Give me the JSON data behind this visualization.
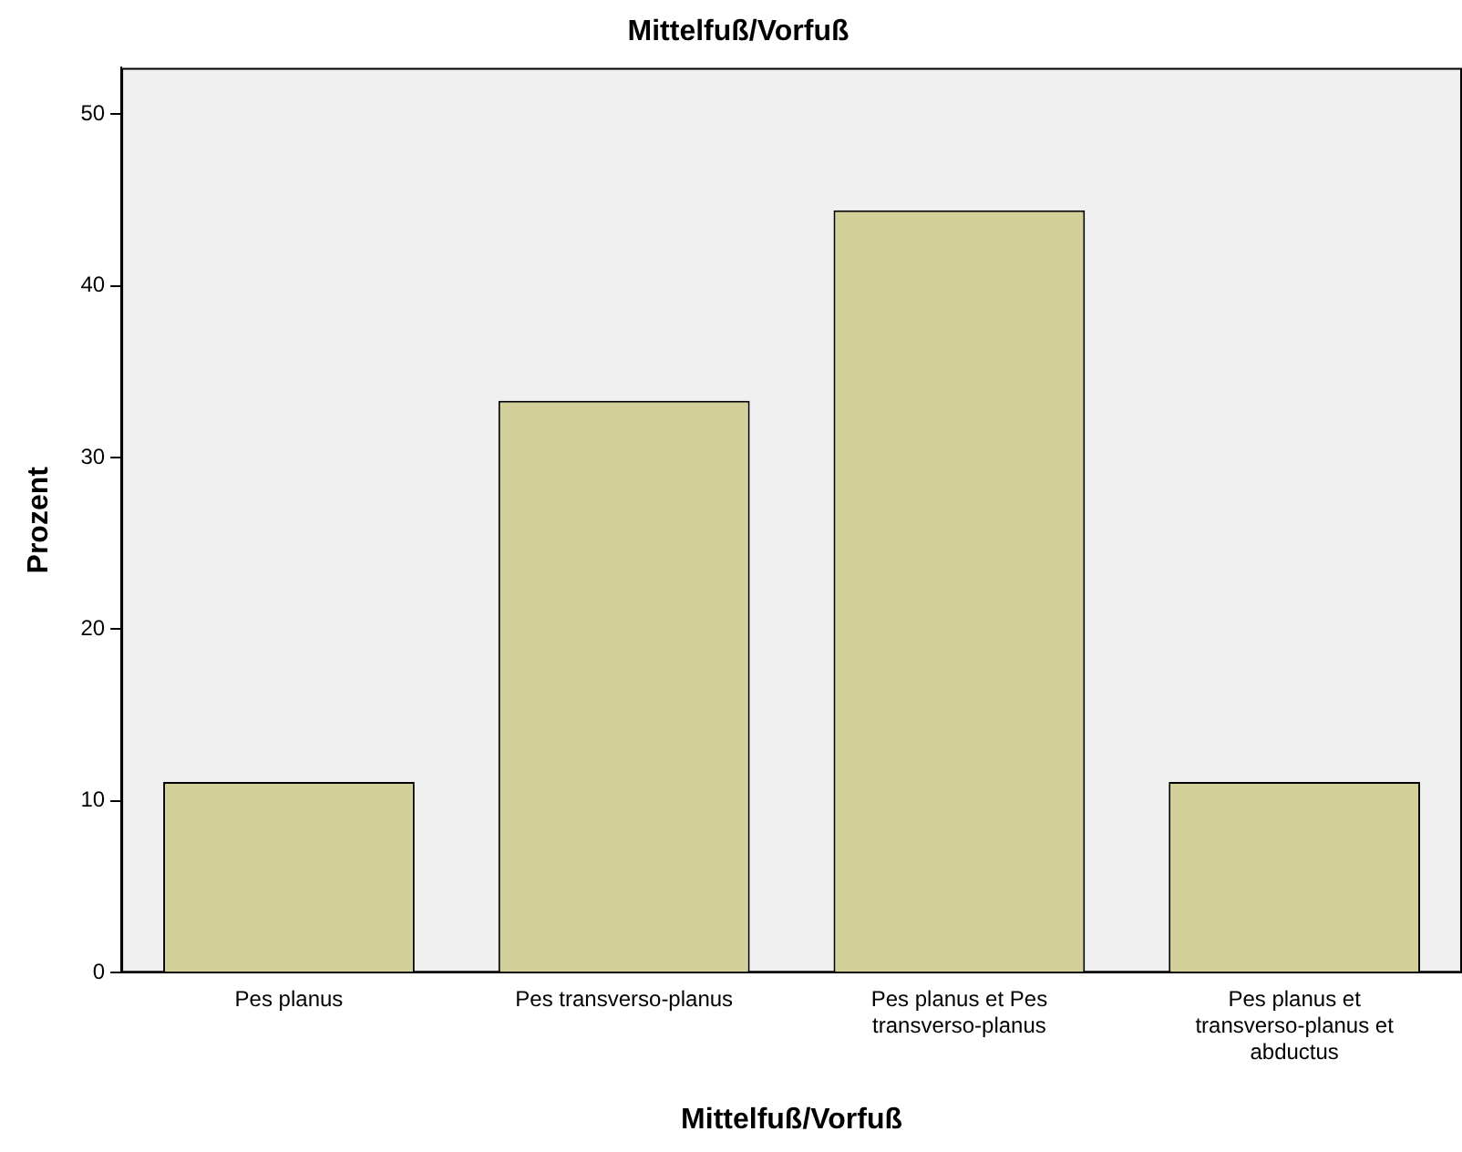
{
  "chart_data": {
    "type": "bar",
    "title": "Mittelfuß/Vorfuß",
    "xlabel": "Mittelfuß/Vorfuß",
    "ylabel": "Prozent",
    "categories": [
      "Pes planus",
      "Pes transverso-planus",
      "Pes planus et Pes transverso-planus",
      "Pes planus et transverso-planus et abductus"
    ],
    "values": [
      11.1,
      33.3,
      44.4,
      11.1
    ],
    "color": "#d3cf98",
    "ylim": [
      0,
      52.7
    ],
    "yticks": [
      0,
      10,
      20,
      30,
      40,
      50
    ],
    "grid": false,
    "legend": false
  }
}
